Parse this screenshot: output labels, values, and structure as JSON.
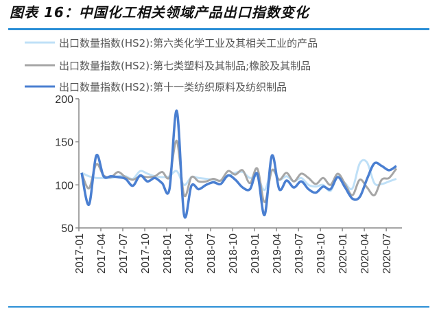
{
  "title": "图表 16：中国化工相关领域产品出口指数变化",
  "colors": {
    "rule": "#2b8fd6"
  },
  "chart_data": {
    "type": "line",
    "title": "",
    "xlabel": "",
    "ylabel": "",
    "ylim": [
      50,
      200
    ],
    "yticks": [
      "200",
      "150",
      "100",
      "50"
    ],
    "xtick_labels": [
      "2017-01",
      "2017-04",
      "2017-07",
      "2017-10",
      "2018-01",
      "2018-04",
      "2018-07",
      "2018-10",
      "2019-01",
      "2019-04",
      "2019-07",
      "2019-10",
      "2020-01",
      "2020-04",
      "2020-07"
    ],
    "grid": false,
    "legend_position": "top",
    "x": [
      "2017-01",
      "2017-02",
      "2017-03",
      "2017-04",
      "2017-05",
      "2017-06",
      "2017-07",
      "2017-08",
      "2017-09",
      "2017-10",
      "2017-11",
      "2017-12",
      "2018-01",
      "2018-02",
      "2018-03",
      "2018-04",
      "2018-05",
      "2018-06",
      "2018-07",
      "2018-08",
      "2018-09",
      "2018-10",
      "2018-11",
      "2018-12",
      "2019-01",
      "2019-02",
      "2019-03",
      "2019-04",
      "2019-05",
      "2019-06",
      "2019-07",
      "2019-08",
      "2019-09",
      "2019-10",
      "2019-11",
      "2019-12",
      "2020-01",
      "2020-02",
      "2020-03",
      "2020-04",
      "2020-05",
      "2020-06",
      "2020-07",
      "2020-08"
    ],
    "series": [
      {
        "name": "出口数量指数(HS2):第六类化学工业及其相关工业的产品",
        "color": "#bfe0f7",
        "values": [
          114,
          110,
          108,
          108,
          108,
          110,
          110,
          107,
          116,
          113,
          110,
          109,
          110,
          116,
          100,
          109,
          108,
          107,
          106,
          105,
          110,
          114,
          115,
          108,
          110,
          94,
          117,
          106,
          110,
          104,
          108,
          100,
          98,
          100,
          93,
          110,
          102,
          96,
          125,
          126,
          102,
          101,
          104,
          107
        ]
      },
      {
        "name": "出口数量指数(HS2):第七类塑料及其制品;橡胶及其制品",
        "color": "#a6a6a6",
        "values": [
          114,
          96,
          124,
          111,
          109,
          115,
          109,
          106,
          110,
          109,
          110,
          115,
          109,
          151,
          88,
          109,
          104,
          104,
          107,
          105,
          116,
          112,
          117,
          102,
          119,
          80,
          117,
          106,
          114,
          104,
          113,
          108,
          101,
          108,
          100,
          113,
          101,
          88,
          106,
          97,
          88,
          106,
          108,
          119
        ]
      },
      {
        "name": "出口数量指数(HS2):第十一类纺织原料及纺织制品",
        "color": "#4a7fd1",
        "values": [
          114,
          77,
          134,
          110,
          110,
          109,
          107,
          99,
          111,
          104,
          108,
          102,
          95,
          186,
          65,
          99,
          95,
          100,
          103,
          101,
          111,
          106,
          97,
          95,
          113,
          65,
          134,
          95,
          105,
          97,
          104,
          95,
          91,
          98,
          95,
          109,
          97,
          84,
          86,
          107,
          125,
          122,
          117,
          122
        ]
      }
    ]
  }
}
